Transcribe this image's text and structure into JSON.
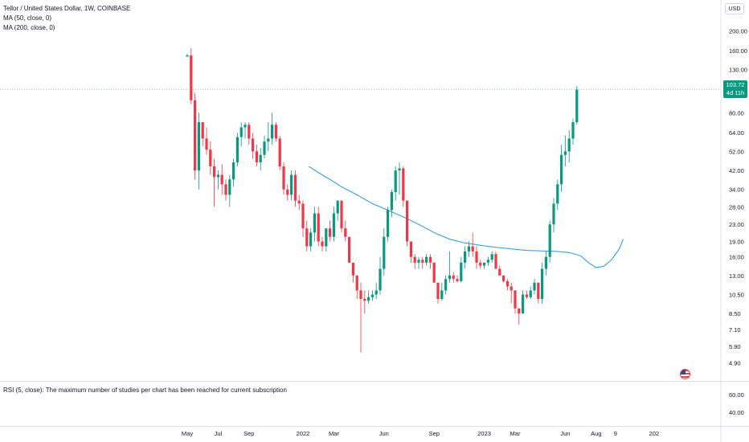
{
  "header": {
    "symbol_line": "Tellor / United States Dollar, 1W, COINBASE",
    "ma50_label": "MA (50, close, 0)",
    "ma200_label": "MA (200, close, 0)"
  },
  "rsi_pane": {
    "label": "RSI (5, close): The maximum number of studies per chart has been reached for current subscription",
    "ticks": [
      "60.00",
      "40.00"
    ]
  },
  "currency_button": "USD",
  "last_price": {
    "value": "103.72",
    "countdown": "4d 11h"
  },
  "colors": {
    "up": "#089981",
    "down": "#f23645",
    "ma50": "#2196f3",
    "price_line": "#089981"
  },
  "chart_data": {
    "type": "candlestick",
    "y_scale": "log",
    "ylim": [
      4.3,
      240
    ],
    "y_ticks": [
      200,
      160,
      130,
      100,
      80,
      64,
      52,
      42,
      34,
      28,
      23,
      19,
      16,
      13,
      10.5,
      8.5,
      7.1,
      5.9,
      4.9
    ],
    "y_tick_labels": [
      "200.00",
      "160.00",
      "130.00",
      "100.00",
      "80.00",
      "64.00",
      "52.00",
      "42.00",
      "34.00",
      "28.00",
      "23.00",
      "19.00",
      "16.00",
      "13.00",
      "10.50",
      "8.50",
      "7.10",
      "5.90",
      "4.90"
    ],
    "x_range_weeks": [
      0,
      130
    ],
    "x_labels": [
      {
        "label": "May",
        "week": 0
      },
      {
        "label": "Jul",
        "week": 8
      },
      {
        "label": "Sep",
        "week": 16
      },
      {
        "label": "2022",
        "week": 30
      },
      {
        "label": "Mar",
        "week": 38
      },
      {
        "label": "Jun",
        "week": 51
      },
      {
        "label": "Sep",
        "week": 64
      },
      {
        "label": "2023",
        "week": 77
      },
      {
        "label": "Mar",
        "week": 85
      },
      {
        "label": "Jun",
        "week": 98
      },
      {
        "label": "Aug",
        "week": 106
      },
      {
        "label": "9",
        "week": 111
      },
      {
        "label": "202",
        "week": 121
      }
    ],
    "ohlc": [
      [
        150,
        155,
        150,
        152
      ],
      [
        152,
        165,
        88,
        92
      ],
      [
        92,
        100,
        38,
        42
      ],
      [
        42,
        80,
        34,
        72
      ],
      [
        72,
        72,
        55,
        60
      ],
      [
        60,
        68,
        50,
        53
      ],
      [
        53,
        58,
        40,
        44
      ],
      [
        44,
        48,
        28,
        39
      ],
      [
        39,
        42,
        34,
        40
      ],
      [
        40,
        45,
        32,
        36
      ],
      [
        36,
        38,
        30,
        32
      ],
      [
        32,
        40,
        28,
        38
      ],
      [
        38,
        48,
        35,
        46
      ],
      [
        46,
        64,
        44,
        61
      ],
      [
        61,
        72,
        55,
        68
      ],
      [
        68,
        72,
        60,
        70
      ],
      [
        70,
        72,
        56,
        60
      ],
      [
        60,
        64,
        48,
        52
      ],
      [
        52,
        56,
        44,
        46
      ],
      [
        46,
        54,
        42,
        50
      ],
      [
        50,
        62,
        48,
        58
      ],
      [
        58,
        72,
        52,
        60
      ],
      [
        60,
        80,
        56,
        70
      ],
      [
        70,
        72,
        58,
        60
      ],
      [
        60,
        62,
        42,
        44
      ],
      [
        44,
        46,
        32,
        34
      ],
      [
        34,
        36,
        30,
        32
      ],
      [
        32,
        42,
        30,
        40
      ],
      [
        40,
        42,
        28,
        30
      ],
      [
        30,
        32,
        27,
        29
      ],
      [
        29,
        30,
        20,
        22
      ],
      [
        22,
        24,
        17,
        18
      ],
      [
        18,
        22,
        17,
        21
      ],
      [
        21,
        28,
        19,
        26
      ],
      [
        26,
        28,
        18,
        19
      ],
      [
        19,
        20,
        17,
        18
      ],
      [
        18,
        22,
        17,
        22
      ],
      [
        22,
        24,
        19,
        20
      ],
      [
        20,
        28,
        19,
        26
      ],
      [
        26,
        30,
        24,
        30
      ],
      [
        30,
        30,
        21,
        22
      ],
      [
        22,
        24,
        19,
        20
      ],
      [
        20,
        20,
        15,
        15
      ],
      [
        15,
        15,
        12,
        13
      ],
      [
        13,
        13,
        10,
        11
      ],
      [
        11,
        12,
        5.5,
        10
      ],
      [
        10,
        11,
        8.5,
        9.8
      ],
      [
        9.8,
        11,
        9.5,
        10.2
      ],
      [
        10.2,
        11,
        9.8,
        10.5
      ],
      [
        10.5,
        12,
        10,
        11
      ],
      [
        11,
        16,
        10.5,
        14
      ],
      [
        14,
        22,
        13,
        20
      ],
      [
        20,
        28,
        19,
        27
      ],
      [
        27,
        34,
        25,
        33
      ],
      [
        33,
        44,
        30,
        42
      ],
      [
        42,
        46,
        32,
        43
      ],
      [
        43,
        44,
        28,
        30
      ],
      [
        30,
        30,
        18,
        19
      ],
      [
        19,
        19,
        15,
        16
      ],
      [
        16,
        16.5,
        14,
        15
      ],
      [
        15,
        16,
        14,
        15.5
      ],
      [
        15.5,
        16,
        14,
        15
      ],
      [
        15,
        16.5,
        14.5,
        16
      ],
      [
        16,
        16.5,
        14,
        15
      ],
      [
        15,
        15,
        12,
        12
      ],
      [
        12,
        12,
        9.5,
        10
      ],
      [
        10,
        12,
        9.8,
        11
      ],
      [
        11,
        13,
        10.5,
        12.5
      ],
      [
        12.5,
        17,
        12,
        13
      ],
      [
        13,
        13.5,
        12,
        12.5
      ],
      [
        12.5,
        13,
        12,
        12.2
      ],
      [
        12.2,
        16,
        12,
        15
      ],
      [
        15,
        18,
        14,
        17
      ],
      [
        17,
        19,
        16,
        18
      ],
      [
        18,
        21,
        16,
        17
      ],
      [
        17,
        18,
        14,
        15
      ],
      [
        15,
        15.5,
        14,
        14.5
      ],
      [
        14.5,
        15,
        14,
        15
      ],
      [
        15,
        16,
        14.5,
        15.5
      ],
      [
        15.5,
        17,
        15,
        16.5
      ],
      [
        16.5,
        17,
        14,
        14
      ],
      [
        14,
        14.5,
        13,
        13
      ],
      [
        13,
        13,
        12,
        12.2
      ],
      [
        12.2,
        12.5,
        11,
        11.5
      ],
      [
        11.5,
        12,
        9.5,
        11
      ],
      [
        11,
        11,
        8.5,
        9
      ],
      [
        9,
        9,
        7.5,
        8.5
      ],
      [
        8.5,
        11,
        8.5,
        10.5
      ],
      [
        10.5,
        11,
        10,
        10.2
      ],
      [
        10.2,
        11.5,
        10,
        11
      ],
      [
        11,
        12.5,
        10.5,
        12
      ],
      [
        12,
        12,
        9.5,
        10
      ],
      [
        10,
        15,
        9.5,
        14
      ],
      [
        14,
        17,
        13,
        16
      ],
      [
        16,
        24,
        15,
        23
      ],
      [
        23,
        31,
        21,
        29
      ],
      [
        29,
        38,
        27,
        36
      ],
      [
        36,
        56,
        33,
        50
      ],
      [
        50,
        62,
        44,
        52
      ],
      [
        52,
        66,
        46,
        60
      ],
      [
        60,
        75,
        56,
        72
      ],
      [
        72,
        108,
        70,
        103.72
      ]
    ],
    "ma50": [
      [
        31.5,
        44
      ],
      [
        34,
        41
      ],
      [
        37,
        38
      ],
      [
        40,
        35
      ],
      [
        44,
        32
      ],
      [
        48,
        29
      ],
      [
        52,
        27
      ],
      [
        56,
        25
      ],
      [
        60,
        23
      ],
      [
        64,
        21
      ],
      [
        68,
        19.5
      ],
      [
        72,
        18.7
      ],
      [
        76,
        18.2
      ],
      [
        80,
        17.8
      ],
      [
        84,
        17.5
      ],
      [
        88,
        17.2
      ],
      [
        92,
        17.1
      ],
      [
        96,
        17.0
      ],
      [
        99,
        16.8
      ],
      [
        102,
        16.2
      ],
      [
        104,
        15.0
      ],
      [
        106,
        14.2
      ],
      [
        108,
        14.4
      ],
      [
        110,
        15.5
      ],
      [
        112,
        17.5
      ],
      [
        113,
        19.5
      ]
    ]
  }
}
